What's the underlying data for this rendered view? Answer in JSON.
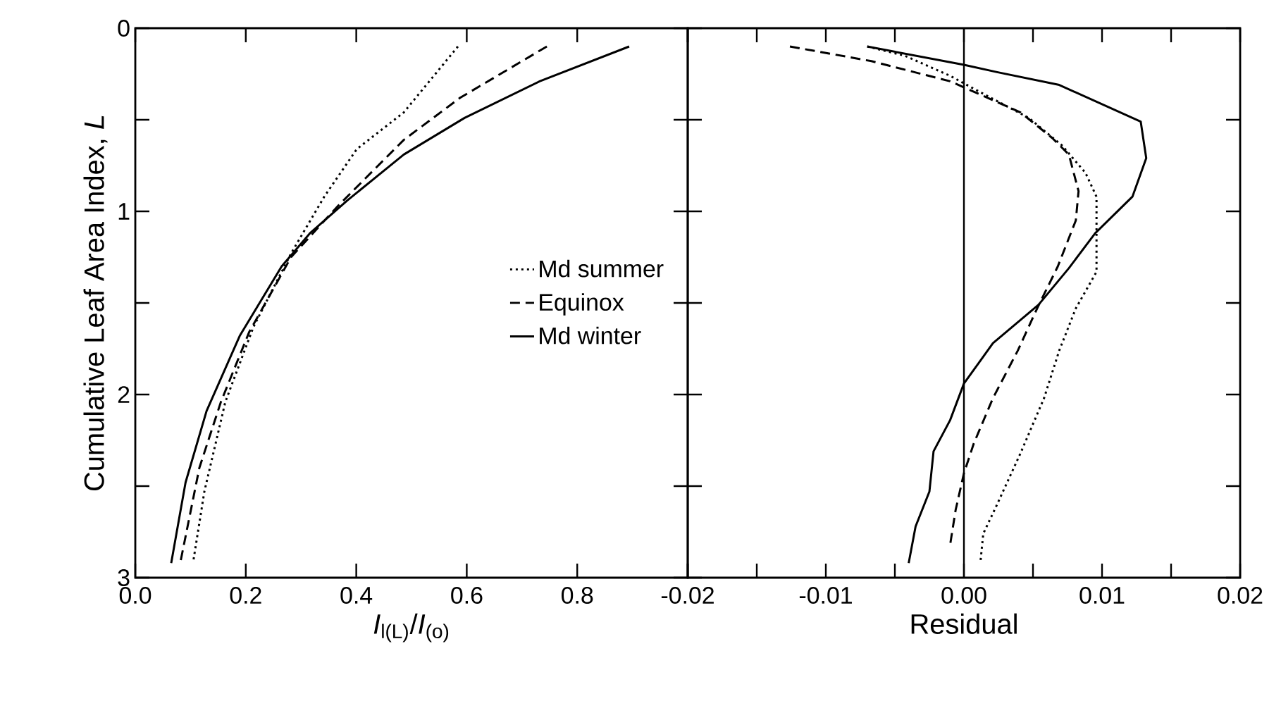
{
  "chart_data": [
    {
      "type": "line",
      "xlabel": "*I*$_{l(L)}$/*I*$_{(o)}$",
      "ylabel": "Cumulative Leaf Area Index, *L*",
      "xlim": [
        0,
        1.0
      ],
      "xticks": [
        {
          "value": 0,
          "label": "0.0"
        },
        0.2,
        0.4,
        0.6,
        0.8,
        {
          "value": 1.0,
          "label": null
        }
      ],
      "ylim": [
        3,
        0
      ],
      "yticks": [
        0,
        {
          "value": 0.5,
          "label": null
        },
        1,
        {
          "value": 1.5,
          "label": null
        },
        2,
        {
          "value": 2.5,
          "label": null
        },
        3
      ],
      "legend": "right",
      "grid": false,
      "marker": "none",
      "series": [
        {
          "name": "Md summer",
          "color": "#000000",
          "line_style": "dotted",
          "x": [
            0.584,
            0.486,
            0.401,
            0.342,
            0.282,
            0.214,
            0.163,
            0.125,
            0.105
          ],
          "values": [
            0.1,
            0.46,
            0.66,
            0.92,
            1.23,
            1.63,
            2.04,
            2.53,
            2.91
          ]
        },
        {
          "name": "Equinox",
          "color": "#000000",
          "line_style": "dashed",
          "x": [
            0.745,
            0.588,
            0.486,
            0.367,
            0.282,
            0.206,
            0.155,
            0.116,
            0.082
          ],
          "values": [
            0.1,
            0.38,
            0.61,
            0.97,
            1.25,
            1.66,
            2.04,
            2.4,
            2.91
          ]
        },
        {
          "name": "Md winter",
          "color": "#000000",
          "line_style": "solid",
          "x": [
            0.894,
            0.732,
            0.596,
            0.486,
            0.384,
            0.316,
            0.265,
            0.189,
            0.129,
            0.091,
            0.065
          ],
          "values": [
            0.1,
            0.29,
            0.49,
            0.69,
            0.94,
            1.12,
            1.3,
            1.68,
            2.09,
            2.48,
            2.92
          ]
        }
      ]
    },
    {
      "type": "line",
      "xlabel": "Residual",
      "xlim": [
        -0.02,
        0.02
      ],
      "xticks": [
        -0.02,
        {
          "value": -0.015,
          "label": null
        },
        -0.01,
        {
          "value": -0.005,
          "label": null
        },
        {
          "value": 0,
          "label": "0.00"
        },
        {
          "value": 0.005,
          "label": null
        },
        0.01,
        {
          "value": 0.015,
          "label": null
        },
        0.02
      ],
      "ylim": [
        3,
        0
      ],
      "yticks": [
        0,
        {
          "value": 0.5,
          "label": null
        },
        1,
        {
          "value": 1.5,
          "label": null
        },
        2,
        {
          "value": 2.5,
          "label": null
        },
        3
      ],
      "tick_labels": "x",
      "grid": false,
      "marker": "none",
      "ref_lines": [
        {
          "axis": "x",
          "value": 0,
          "color": "#000000",
          "line_style": "solid"
        }
      ],
      "series": [
        {
          "color": "#000000",
          "line_style": "dotted",
          "x": [
            -0.007,
            -0.0043,
            -0.001,
            0.0007,
            0.0047,
            0.0071,
            0.0088,
            0.0096,
            0.0096,
            0.0081,
            0.0069,
            0.0058,
            0.0041,
            0.0024,
            0.0014,
            0.0012
          ],
          "values": [
            0.1,
            0.15,
            0.26,
            0.33,
            0.49,
            0.64,
            0.79,
            0.92,
            1.33,
            1.53,
            1.76,
            2.02,
            2.32,
            2.6,
            2.76,
            2.91
          ]
        },
        {
          "color": "#000000",
          "line_style": "dashed",
          "x": [
            -0.0126,
            -0.0067,
            -0.001,
            0.0041,
            0.0064,
            0.0076,
            0.0083,
            0.0081,
            0.0068,
            0.0053,
            0.0039,
            0.0021,
            0.0007,
            0.0,
            -0.0006,
            -0.001
          ],
          "values": [
            0.1,
            0.18,
            0.29,
            0.46,
            0.6,
            0.69,
            0.89,
            1.05,
            1.3,
            1.53,
            1.76,
            2.02,
            2.27,
            2.43,
            2.63,
            2.82
          ]
        },
        {
          "color": "#000000",
          "line_style": "solid",
          "x": [
            -0.007,
            0.0,
            0.0024,
            0.0069,
            0.0128,
            0.0132,
            0.0122,
            0.0095,
            0.0076,
            0.0054,
            0.0021,
            0.0,
            -0.001,
            -0.0022,
            -0.0025,
            -0.0035,
            -0.004
          ],
          "values": [
            0.1,
            0.2,
            0.24,
            0.31,
            0.51,
            0.71,
            0.92,
            1.12,
            1.31,
            1.51,
            1.72,
            1.94,
            2.14,
            2.31,
            2.53,
            2.72,
            2.92
          ]
        }
      ]
    }
  ]
}
